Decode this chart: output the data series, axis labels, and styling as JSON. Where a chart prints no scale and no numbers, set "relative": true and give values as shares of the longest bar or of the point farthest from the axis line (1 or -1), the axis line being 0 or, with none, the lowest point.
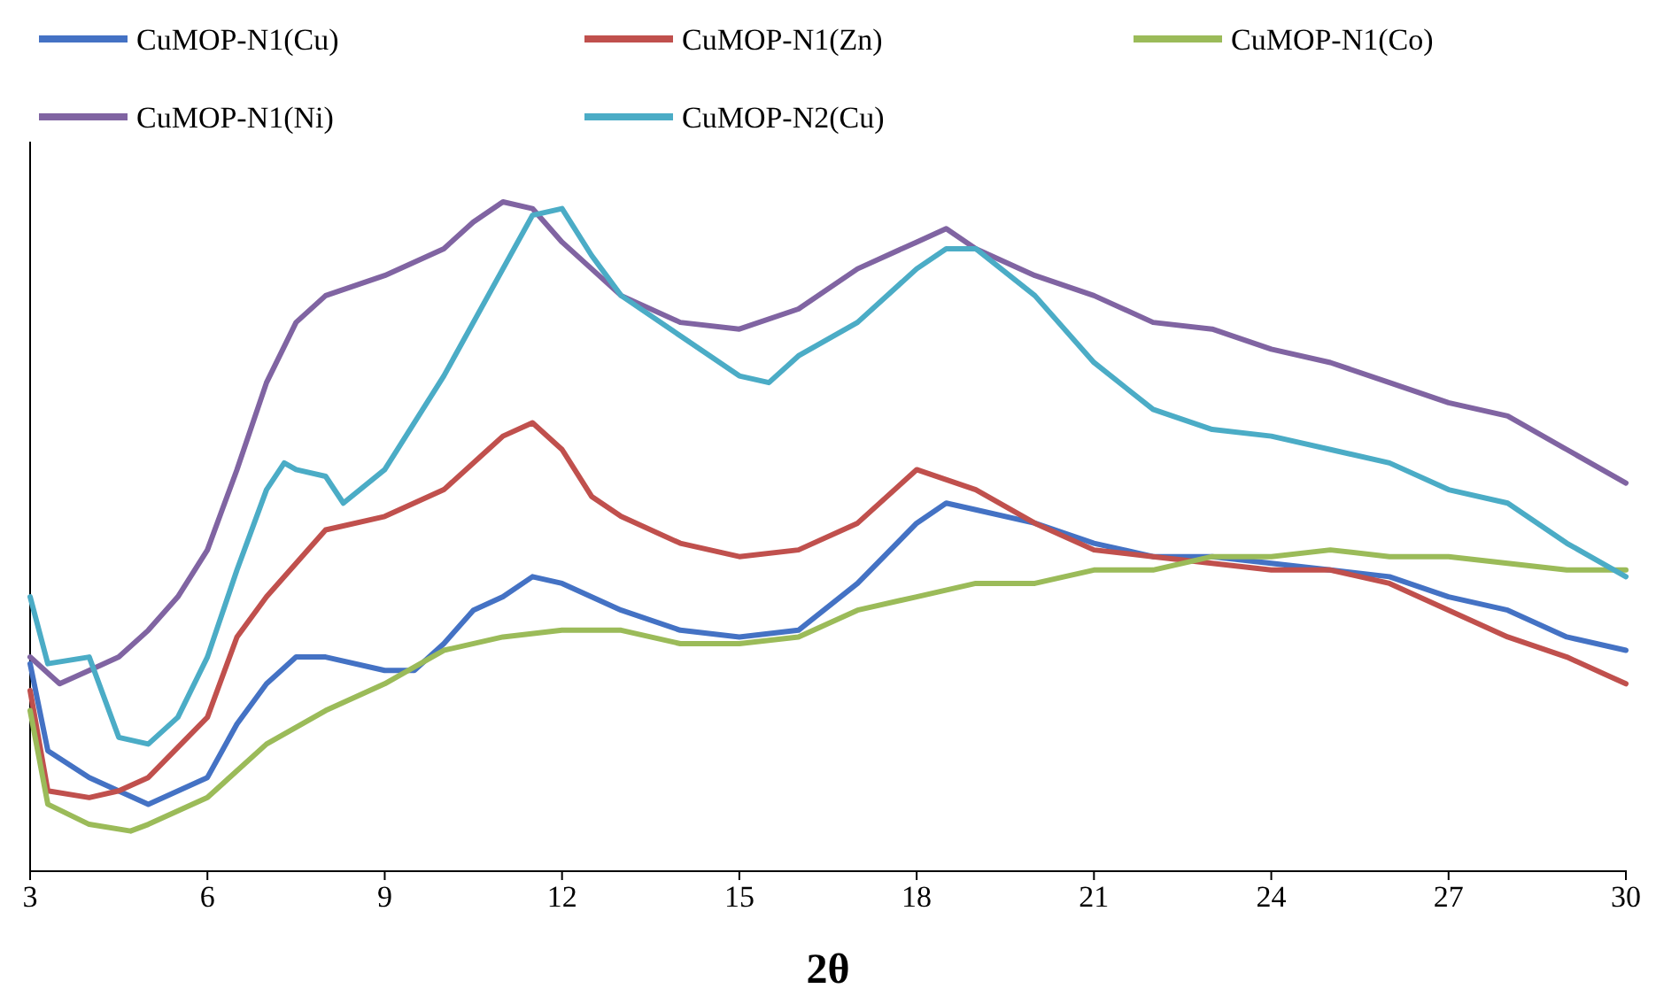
{
  "chart_data": {
    "type": "line",
    "xlabel": "2θ",
    "relative": true,
    "legend": "top",
    "grid": false,
    "marker": "none",
    "line_style": "solid",
    "xlim": [
      3,
      30
    ],
    "xticks": [
      3,
      6,
      9,
      12,
      15,
      18,
      21,
      24,
      27,
      30
    ],
    "series": [
      {
        "name": "CuMOP-N1(Cu)",
        "color": "#4472c4",
        "x": [
          3,
          3.3,
          4,
          5,
          6,
          6.5,
          7,
          7.5,
          8,
          9,
          9.5,
          10,
          10.5,
          11,
          11.5,
          12,
          13,
          14,
          15,
          16,
          17,
          18,
          18.5,
          19,
          20,
          21,
          22,
          23,
          24,
          25,
          26,
          27,
          28,
          29,
          30
        ],
        "values": [
          0.31,
          0.18,
          0.14,
          0.1,
          0.14,
          0.22,
          0.28,
          0.32,
          0.32,
          0.3,
          0.3,
          0.34,
          0.39,
          0.41,
          0.44,
          0.43,
          0.39,
          0.36,
          0.35,
          0.36,
          0.43,
          0.52,
          0.55,
          0.54,
          0.52,
          0.49,
          0.47,
          0.47,
          0.46,
          0.45,
          0.44,
          0.41,
          0.39,
          0.35,
          0.33
        ]
      },
      {
        "name": "CuMOP-N1(Zn)",
        "color": "#c0504d",
        "x": [
          3,
          3.3,
          4,
          4.5,
          5,
          6,
          6.5,
          7,
          8,
          9,
          10,
          11,
          11.5,
          12,
          12.5,
          13,
          14,
          15,
          16,
          17,
          18,
          19,
          20,
          21,
          22,
          23,
          24,
          25,
          26,
          27,
          28,
          29,
          30
        ],
        "values": [
          0.27,
          0.12,
          0.11,
          0.12,
          0.14,
          0.23,
          0.35,
          0.41,
          0.51,
          0.53,
          0.57,
          0.65,
          0.67,
          0.63,
          0.56,
          0.53,
          0.49,
          0.47,
          0.48,
          0.52,
          0.6,
          0.57,
          0.52,
          0.48,
          0.47,
          0.46,
          0.45,
          0.45,
          0.43,
          0.39,
          0.35,
          0.32,
          0.28
        ]
      },
      {
        "name": "CuMOP-N1(Co)",
        "color": "#9bbb59",
        "x": [
          3,
          3.3,
          4,
          4.7,
          5,
          6,
          7,
          8,
          9,
          10,
          11,
          12,
          13,
          14,
          15,
          16,
          17,
          18,
          19,
          20,
          21,
          22,
          23,
          24,
          25,
          26,
          27,
          28,
          29,
          30
        ],
        "values": [
          0.24,
          0.1,
          0.07,
          0.06,
          0.07,
          0.11,
          0.19,
          0.24,
          0.28,
          0.33,
          0.35,
          0.36,
          0.36,
          0.34,
          0.34,
          0.35,
          0.39,
          0.41,
          0.43,
          0.43,
          0.45,
          0.45,
          0.47,
          0.47,
          0.48,
          0.47,
          0.47,
          0.46,
          0.45,
          0.45
        ]
      },
      {
        "name": "CuMOP-N1(Ni)",
        "color": "#8064a2",
        "x": [
          3,
          3.5,
          4,
          4.5,
          5,
          5.5,
          6,
          6.5,
          7,
          7.5,
          8,
          9,
          10,
          10.5,
          11,
          11.5,
          12,
          12.5,
          13,
          14,
          15,
          16,
          17,
          18,
          18.5,
          19,
          20,
          21,
          22,
          23,
          24,
          25,
          26,
          27,
          28,
          29,
          30
        ],
        "values": [
          0.32,
          0.28,
          0.3,
          0.32,
          0.36,
          0.41,
          0.48,
          0.6,
          0.73,
          0.82,
          0.86,
          0.89,
          0.93,
          0.97,
          1,
          0.99,
          0.94,
          0.9,
          0.86,
          0.82,
          0.81,
          0.84,
          0.9,
          0.94,
          0.96,
          0.93,
          0.89,
          0.86,
          0.82,
          0.81,
          0.78,
          0.76,
          0.73,
          0.7,
          0.68,
          0.63,
          0.58
        ]
      },
      {
        "name": "CuMOP-N2(Cu)",
        "color": "#4bacc6",
        "x": [
          3,
          3.3,
          4,
          4.5,
          5,
          5.5,
          6,
          6.5,
          7,
          7.3,
          7.5,
          8,
          8.3,
          9,
          10,
          11,
          11.5,
          12,
          12.5,
          13,
          14,
          15,
          15.5,
          16,
          17,
          18,
          18.5,
          19,
          20,
          21,
          22,
          23,
          24,
          25,
          26,
          27,
          28,
          29,
          30
        ],
        "values": [
          0.41,
          0.31,
          0.32,
          0.2,
          0.19,
          0.23,
          0.32,
          0.45,
          0.57,
          0.61,
          0.6,
          0.59,
          0.55,
          0.6,
          0.74,
          0.9,
          0.98,
          0.99,
          0.92,
          0.86,
          0.8,
          0.74,
          0.73,
          0.77,
          0.82,
          0.9,
          0.93,
          0.93,
          0.86,
          0.76,
          0.69,
          0.66,
          0.65,
          0.63,
          0.61,
          0.57,
          0.55,
          0.49,
          0.44
        ]
      }
    ]
  }
}
